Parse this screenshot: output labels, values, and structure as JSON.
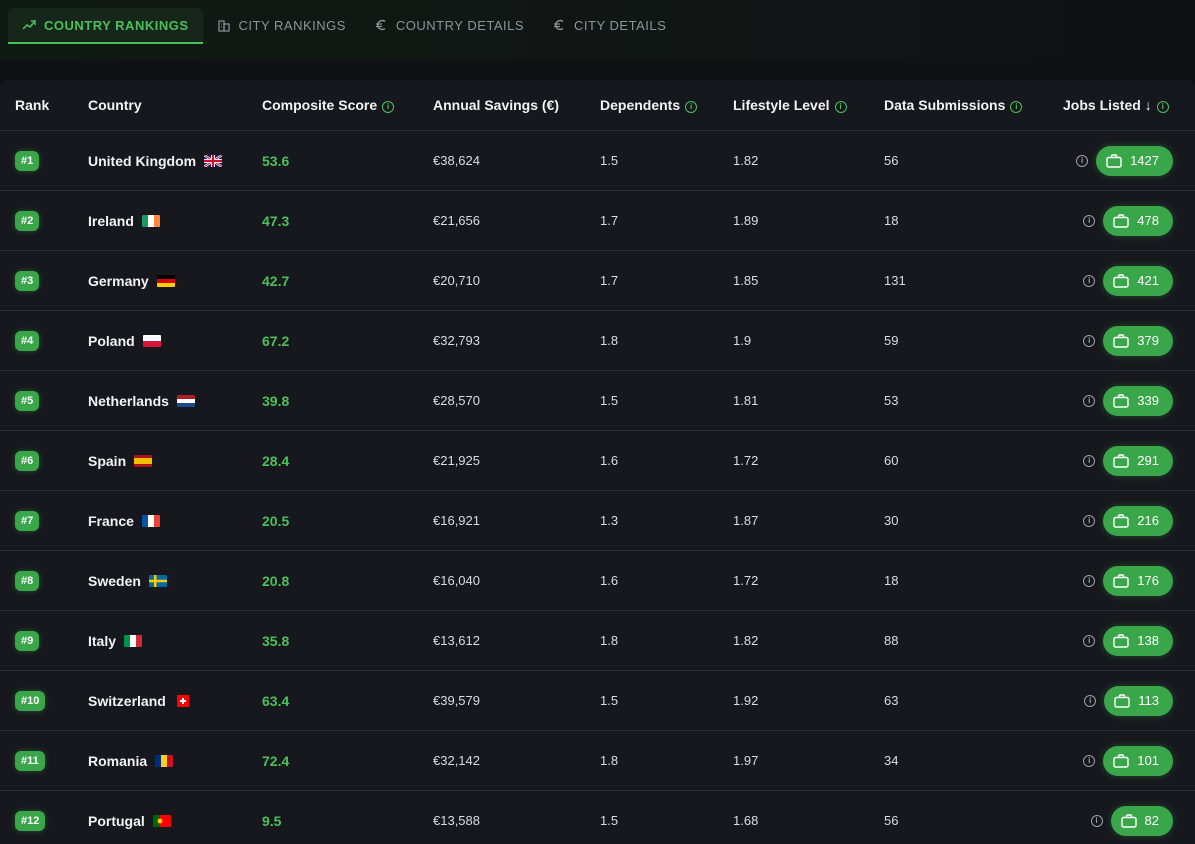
{
  "tabs": [
    {
      "label": "COUNTRY RANKINGS",
      "icon": "trending-up-icon",
      "active": true
    },
    {
      "label": "CITY RANKINGS",
      "icon": "buildings-icon",
      "active": false
    },
    {
      "label": "COUNTRY DETAILS",
      "icon": "euro-icon",
      "active": false
    },
    {
      "label": "CITY DETAILS",
      "icon": "euro-icon",
      "active": false
    }
  ],
  "table": {
    "headers": {
      "rank": "Rank",
      "country": "Country",
      "score": "Composite Score",
      "savings": "Annual Savings (€)",
      "dependents": "Dependents",
      "lifestyle": "Lifestyle Level",
      "submissions": "Data Submissions",
      "jobs": "Jobs Listed"
    },
    "rows": [
      {
        "rank": "#1",
        "country": "United Kingdom",
        "flag": "gb",
        "score": "53.6",
        "savings": "€38,624",
        "dependents": "1.5",
        "lifestyle": "1.82",
        "submissions": "56",
        "jobs": "1427"
      },
      {
        "rank": "#2",
        "country": "Ireland",
        "flag": "ie",
        "score": "47.3",
        "savings": "€21,656",
        "dependents": "1.7",
        "lifestyle": "1.89",
        "submissions": "18",
        "jobs": "478"
      },
      {
        "rank": "#3",
        "country": "Germany",
        "flag": "de",
        "score": "42.7",
        "savings": "€20,710",
        "dependents": "1.7",
        "lifestyle": "1.85",
        "submissions": "131",
        "jobs": "421"
      },
      {
        "rank": "#4",
        "country": "Poland",
        "flag": "pl",
        "score": "67.2",
        "savings": "€32,793",
        "dependents": "1.8",
        "lifestyle": "1.9",
        "submissions": "59",
        "jobs": "379"
      },
      {
        "rank": "#5",
        "country": "Netherlands",
        "flag": "nl",
        "score": "39.8",
        "savings": "€28,570",
        "dependents": "1.5",
        "lifestyle": "1.81",
        "submissions": "53",
        "jobs": "339"
      },
      {
        "rank": "#6",
        "country": "Spain",
        "flag": "es",
        "score": "28.4",
        "savings": "€21,925",
        "dependents": "1.6",
        "lifestyle": "1.72",
        "submissions": "60",
        "jobs": "291"
      },
      {
        "rank": "#7",
        "country": "France",
        "flag": "fr",
        "score": "20.5",
        "savings": "€16,921",
        "dependents": "1.3",
        "lifestyle": "1.87",
        "submissions": "30",
        "jobs": "216"
      },
      {
        "rank": "#8",
        "country": "Sweden",
        "flag": "se",
        "score": "20.8",
        "savings": "€16,040",
        "dependents": "1.6",
        "lifestyle": "1.72",
        "submissions": "18",
        "jobs": "176"
      },
      {
        "rank": "#9",
        "country": "Italy",
        "flag": "it",
        "score": "35.8",
        "savings": "€13,612",
        "dependents": "1.8",
        "lifestyle": "1.82",
        "submissions": "88",
        "jobs": "138"
      },
      {
        "rank": "#10",
        "country": "Switzerland",
        "flag": "ch",
        "score": "63.4",
        "savings": "€39,579",
        "dependents": "1.5",
        "lifestyle": "1.92",
        "submissions": "63",
        "jobs": "113"
      },
      {
        "rank": "#11",
        "country": "Romania",
        "flag": "ro",
        "score": "72.4",
        "savings": "€32,142",
        "dependents": "1.8",
        "lifestyle": "1.97",
        "submissions": "34",
        "jobs": "101"
      },
      {
        "rank": "#12",
        "country": "Portugal",
        "flag": "pt",
        "score": "9.5",
        "savings": "€13,588",
        "dependents": "1.5",
        "lifestyle": "1.68",
        "submissions": "56",
        "jobs": "82"
      }
    ]
  },
  "colors": {
    "accent": "#4cc05a",
    "accent_bg": "#3aa64a",
    "panel": "#16181d",
    "page": "#0f1115"
  }
}
